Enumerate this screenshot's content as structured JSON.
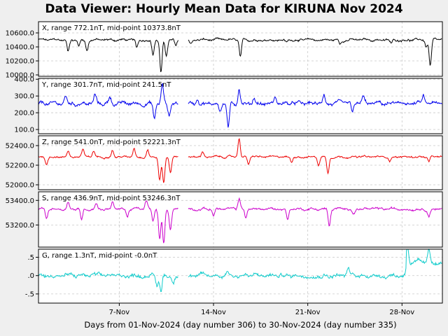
{
  "title": "Data Viewer:  Hourly Mean Data for KIRUNA Nov 2024",
  "xlabel": "Days from 01-Nov-2024 (day number 306) to 30-Nov-2024 (day number 335)",
  "chart_data": {
    "type": "line",
    "x_range_days": [
      1,
      31
    ],
    "x_ticks": [
      {
        "day": 7,
        "label": "7-Nov"
      },
      {
        "day": 14,
        "label": "14-Nov"
      },
      {
        "day": 21,
        "label": "21-Nov"
      },
      {
        "day": 28,
        "label": "28-Nov"
      }
    ],
    "panels": [
      {
        "key": "X",
        "label": "X, range 772.1nT, mid-point 10373.8nT",
        "color": "#000000",
        "ylim": [
          9980,
          10760
        ],
        "y_ticks": [
          10000,
          10200,
          10400,
          10600
        ],
        "y_tick_labels": [
          "10000.0",
          "10200.0",
          "10400.0",
          "10600.0"
        ],
        "baseline": 10500,
        "noise": 18,
        "gap": [
          11.4,
          12.1
        ],
        "events": [
          {
            "day": 3.2,
            "amp": -160
          },
          {
            "day": 4.0,
            "amp": -80
          },
          {
            "day": 4.6,
            "amp": -150
          },
          {
            "day": 8.3,
            "amp": -120
          },
          {
            "day": 9.5,
            "amp": -210
          },
          {
            "day": 10.1,
            "amp": -480
          },
          {
            "day": 10.5,
            "amp": -230
          },
          {
            "day": 11.2,
            "amp": -90
          },
          {
            "day": 12.3,
            "amp": -60
          },
          {
            "day": 16.0,
            "amp": -250
          },
          {
            "day": 19.4,
            "amp": -40
          },
          {
            "day": 23.4,
            "amp": -60
          },
          {
            "day": 27.2,
            "amp": -60
          },
          {
            "day": 29.8,
            "amp": -90
          },
          {
            "day": 30.1,
            "amp": -380
          }
        ]
      },
      {
        "key": "Y",
        "label": "Y, range 301.7nT, mid-point 241.5nT",
        "color": "#0000ee",
        "ylim": [
          75,
          405
        ],
        "y_ticks": [
          100,
          200,
          300,
          400
        ],
        "y_tick_labels": [
          "100.0",
          "200.0",
          "300.0",
          "400.0"
        ],
        "baseline": 255,
        "noise": 12,
        "gap": [
          11.4,
          12.1
        ],
        "events": [
          {
            "day": 3.0,
            "amp": 45
          },
          {
            "day": 5.2,
            "amp": 50
          },
          {
            "day": 6.3,
            "amp": 40
          },
          {
            "day": 9.6,
            "amp": -90
          },
          {
            "day": 10.2,
            "amp": 110
          },
          {
            "day": 10.7,
            "amp": -70
          },
          {
            "day": 12.8,
            "amp": 35
          },
          {
            "day": 14.5,
            "amp": -45
          },
          {
            "day": 15.1,
            "amp": -150
          },
          {
            "day": 15.9,
            "amp": 95
          },
          {
            "day": 17.0,
            "amp": 35
          },
          {
            "day": 18.6,
            "amp": 40
          },
          {
            "day": 22.2,
            "amp": 55
          },
          {
            "day": 24.3,
            "amp": -60
          },
          {
            "day": 25.1,
            "amp": 40
          },
          {
            "day": 29.6,
            "amp": 45
          }
        ]
      },
      {
        "key": "Z",
        "label": "Z, range 541.0nT, mid-point 52221.3nT",
        "color": "#ee0000",
        "ylim": [
          51950,
          52500
        ],
        "y_ticks": [
          52000,
          52200,
          52400
        ],
        "y_tick_labels": [
          "52000.0",
          "52200.0",
          "52400.0"
        ],
        "baseline": 52285,
        "noise": 10,
        "gap": [
          11.4,
          12.1
        ],
        "events": [
          {
            "day": 1.6,
            "amp": -80
          },
          {
            "day": 3.2,
            "amp": 60
          },
          {
            "day": 4.3,
            "amp": 75
          },
          {
            "day": 5.1,
            "amp": 55
          },
          {
            "day": 6.5,
            "amp": 70
          },
          {
            "day": 8.1,
            "amp": 90
          },
          {
            "day": 9.1,
            "amp": 75
          },
          {
            "day": 10.0,
            "amp": -240
          },
          {
            "day": 10.3,
            "amp": -270
          },
          {
            "day": 10.8,
            "amp": -150
          },
          {
            "day": 13.2,
            "amp": 50
          },
          {
            "day": 15.9,
            "amp": 190
          },
          {
            "day": 16.6,
            "amp": -70
          },
          {
            "day": 19.8,
            "amp": -50
          },
          {
            "day": 21.8,
            "amp": -80
          },
          {
            "day": 22.5,
            "amp": -160
          },
          {
            "day": 27.1,
            "amp": -40
          },
          {
            "day": 30.0,
            "amp": -50
          }
        ]
      },
      {
        "key": "S",
        "label": "S, range 436.9nT, mid-point 53246.3nT",
        "color": "#cc00cc",
        "ylim": [
          53020,
          53470
        ],
        "y_ticks": [
          53200,
          53400
        ],
        "y_tick_labels": [
          "53200.0",
          "53400.0"
        ],
        "baseline": 53330,
        "noise": 10,
        "gap": [
          11.4,
          12.1
        ],
        "events": [
          {
            "day": 1.6,
            "amp": -75
          },
          {
            "day": 3.2,
            "amp": 60
          },
          {
            "day": 4.2,
            "amp": -85
          },
          {
            "day": 5.3,
            "amp": 50
          },
          {
            "day": 6.5,
            "amp": 60
          },
          {
            "day": 7.6,
            "amp": -60
          },
          {
            "day": 9.0,
            "amp": 65
          },
          {
            "day": 9.5,
            "amp": -100
          },
          {
            "day": 10.0,
            "amp": -250
          },
          {
            "day": 10.3,
            "amp": -290
          },
          {
            "day": 10.8,
            "amp": -160
          },
          {
            "day": 14.0,
            "amp": -50
          },
          {
            "day": 15.9,
            "amp": 90
          },
          {
            "day": 16.4,
            "amp": -70
          },
          {
            "day": 19.5,
            "amp": -80
          },
          {
            "day": 22.6,
            "amp": -140
          },
          {
            "day": 24.4,
            "amp": -40
          },
          {
            "day": 30.0,
            "amp": -60
          }
        ]
      },
      {
        "key": "G",
        "label": "G, range 1.3nT, mid-point -0.0nT",
        "color": "#11cccc",
        "ylim": [
          -0.75,
          0.72
        ],
        "y_ticks": [
          -0.5,
          0.0,
          0.5
        ],
        "y_tick_labels": [
          "-.5",
          ".0",
          ".5"
        ],
        "baseline": 0.0,
        "noise": 0.06,
        "gap": [
          11.4,
          12.1
        ],
        "events": [
          {
            "day": 9.8,
            "amp": -0.3
          },
          {
            "day": 10.1,
            "amp": -0.45
          },
          {
            "day": 11.0,
            "amp": -0.2
          },
          {
            "day": 15.0,
            "amp": 0.15
          },
          {
            "day": 24.0,
            "amp": 0.2
          },
          {
            "day": 28.4,
            "amp": 0.5
          },
          {
            "day": 30.0,
            "amp": 0.35
          }
        ]
      }
    ]
  }
}
